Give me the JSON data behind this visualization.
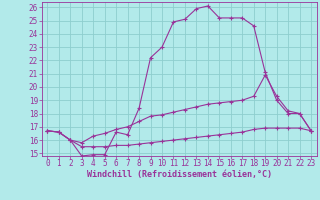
{
  "xlabel": "Windchill (Refroidissement éolien,°C)",
  "background_color": "#b2eaea",
  "grid_color": "#8ecece",
  "line_color": "#993399",
  "xlim": [
    -0.5,
    23.5
  ],
  "ylim": [
    14.8,
    26.4
  ],
  "xticks": [
    0,
    1,
    2,
    3,
    4,
    5,
    6,
    7,
    8,
    9,
    10,
    11,
    12,
    13,
    14,
    15,
    16,
    17,
    18,
    19,
    20,
    21,
    22,
    23
  ],
  "yticks": [
    15,
    16,
    17,
    18,
    19,
    20,
    21,
    22,
    23,
    24,
    25,
    26
  ],
  "line1_x": [
    0,
    1,
    2,
    3,
    4,
    5,
    6,
    7,
    8,
    9,
    10,
    11,
    12,
    13,
    14,
    15,
    16,
    17,
    18,
    19,
    20,
    21,
    22,
    23
  ],
  "line1_y": [
    16.7,
    16.6,
    16.0,
    14.8,
    14.9,
    14.9,
    16.6,
    16.4,
    18.4,
    22.2,
    23.0,
    24.9,
    25.1,
    25.9,
    26.1,
    25.2,
    25.2,
    25.2,
    24.6,
    21.1,
    19.0,
    18.0,
    18.0,
    16.7
  ],
  "line2_x": [
    0,
    1,
    2,
    3,
    4,
    5,
    6,
    7,
    8,
    9,
    10,
    11,
    12,
    13,
    14,
    15,
    16,
    17,
    18,
    19,
    20,
    21,
    22,
    23
  ],
  "line2_y": [
    16.7,
    16.6,
    16.0,
    15.8,
    16.3,
    16.5,
    16.8,
    17.0,
    17.4,
    17.8,
    17.9,
    18.1,
    18.3,
    18.5,
    18.7,
    18.8,
    18.9,
    19.0,
    19.3,
    20.9,
    19.3,
    18.2,
    18.0,
    16.7
  ],
  "line3_x": [
    0,
    1,
    2,
    3,
    4,
    5,
    6,
    7,
    8,
    9,
    10,
    11,
    12,
    13,
    14,
    15,
    16,
    17,
    18,
    19,
    20,
    21,
    22,
    23
  ],
  "line3_y": [
    16.7,
    16.6,
    16.0,
    15.5,
    15.5,
    15.5,
    15.6,
    15.6,
    15.7,
    15.8,
    15.9,
    16.0,
    16.1,
    16.2,
    16.3,
    16.4,
    16.5,
    16.6,
    16.8,
    16.9,
    16.9,
    16.9,
    16.9,
    16.7
  ],
  "tick_fontsize": 5.5,
  "xlabel_fontsize": 6.0
}
